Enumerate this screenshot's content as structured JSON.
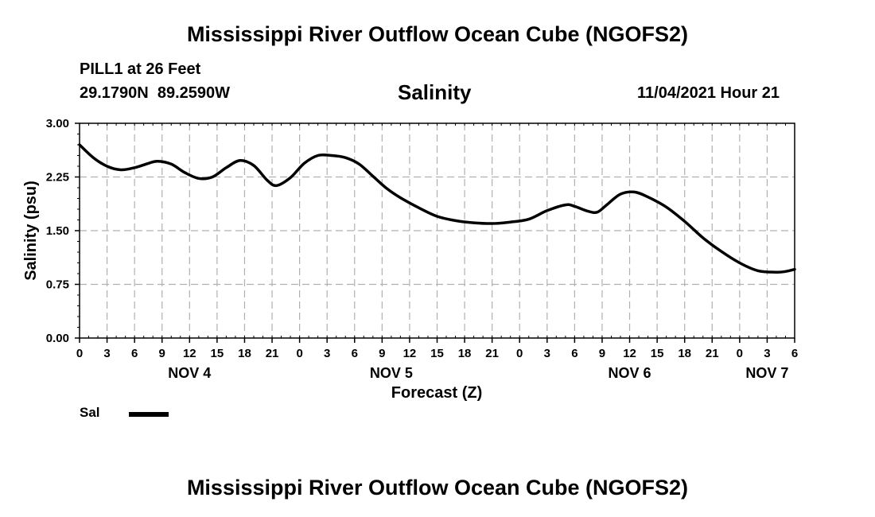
{
  "header": {
    "title": "Mississippi River Outflow Ocean Cube (NGOFS2)",
    "station": "PILL1 at 26 Feet",
    "coords": "29.1790N  89.2590W",
    "timestamp": "11/04/2021 Hour 21"
  },
  "footer": {
    "title": "Mississippi River Outflow Ocean Cube (NGOFS2)"
  },
  "legend": {
    "label": "Sal"
  },
  "colors": {
    "line": "#000000",
    "grid": "#b0b0b0"
  },
  "chart_data": {
    "type": "line",
    "title": "Salinity",
    "xlabel": "Forecast (Z)",
    "ylabel": "Salinity (psu)",
    "xlim": [
      0,
      78
    ],
    "ylim": [
      0,
      3.0
    ],
    "yticks": [
      0,
      0.75,
      1.5,
      2.25,
      3.0
    ],
    "ytick_labels": [
      "0.00",
      "0.75",
      "1.50",
      "2.25",
      "3.00"
    ],
    "xtick_labels": [
      "0",
      "3",
      "6",
      "9",
      "12",
      "15",
      "18",
      "21",
      "0",
      "3",
      "6",
      "9",
      "12",
      "15",
      "18",
      "21",
      "0",
      "3",
      "6",
      "9",
      "12",
      "15",
      "18",
      "21",
      "0",
      "3",
      "6"
    ],
    "day_labels": [
      {
        "label": "NOV 4",
        "hour": 12
      },
      {
        "label": "NOV 5",
        "hour": 34
      },
      {
        "label": "NOV 6",
        "hour": 60
      },
      {
        "label": "NOV 7",
        "hour": 75
      }
    ],
    "series": [
      {
        "name": "Sal",
        "x": [
          0,
          1.5,
          3,
          4.5,
          6,
          7.5,
          8.5,
          10,
          11.5,
          13,
          14.5,
          16,
          17.5,
          19,
          20.5,
          21.5,
          23,
          24.5,
          26,
          27.5,
          29,
          30.5,
          32,
          33.5,
          35,
          37,
          39,
          41,
          43,
          45,
          47,
          49,
          51,
          53,
          54,
          55.5,
          56.5,
          57.5,
          59,
          60.5,
          62,
          64,
          66,
          68,
          70,
          72,
          74,
          76,
          77,
          78
        ],
        "y": [
          2.7,
          2.52,
          2.4,
          2.35,
          2.38,
          2.44,
          2.47,
          2.43,
          2.31,
          2.23,
          2.25,
          2.38,
          2.48,
          2.41,
          2.2,
          2.13,
          2.24,
          2.44,
          2.55,
          2.55,
          2.52,
          2.43,
          2.26,
          2.09,
          1.96,
          1.82,
          1.7,
          1.64,
          1.61,
          1.6,
          1.62,
          1.66,
          1.78,
          1.86,
          1.84,
          1.77,
          1.76,
          1.86,
          2.01,
          2.04,
          1.97,
          1.83,
          1.63,
          1.4,
          1.21,
          1.05,
          0.94,
          0.92,
          0.93,
          0.96
        ]
      }
    ]
  }
}
